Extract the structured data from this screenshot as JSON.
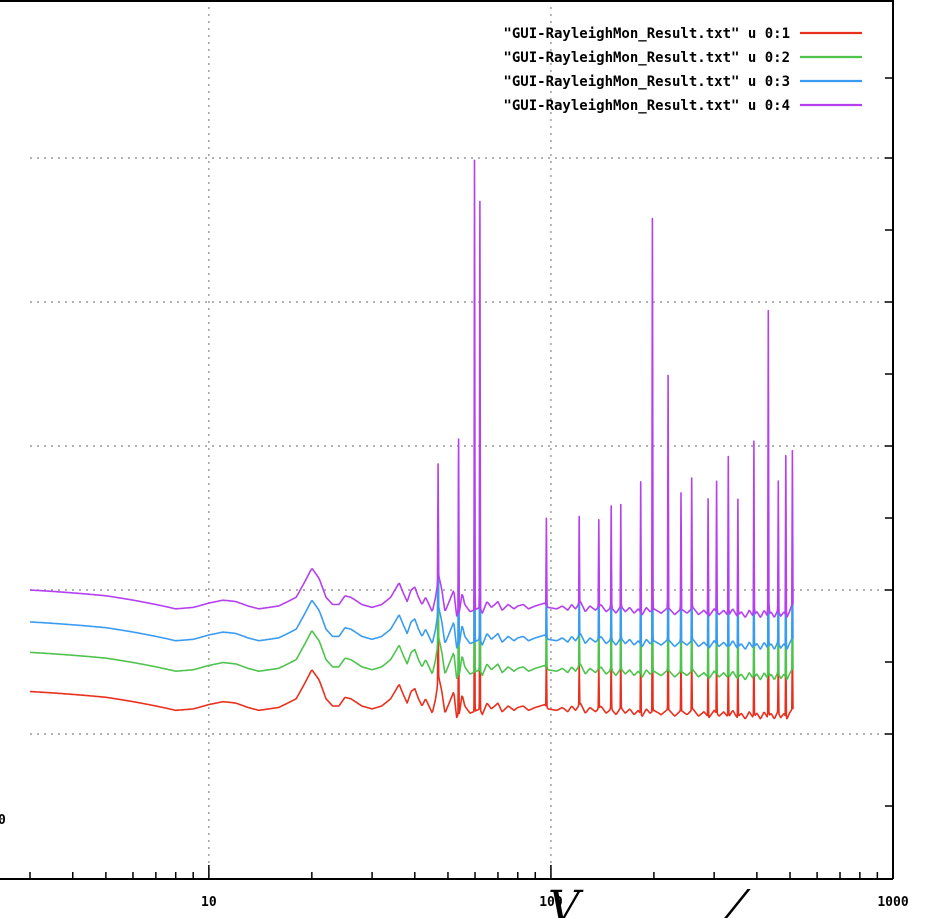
{
  "chart_data": {
    "type": "line",
    "xscale": "log",
    "xlim": [
      3,
      1000
    ],
    "x_ticks": [
      {
        "value": 10,
        "label": "10"
      },
      {
        "value": 100,
        "label": "100"
      },
      {
        "value": 1000,
        "label": "1000"
      }
    ],
    "left_edge_label": "0",
    "grid": true,
    "legend_position": "top-right",
    "series": [
      {
        "name": "\"GUI-RayleighMon_Result.txt\" u 0:1",
        "color": "#e8301e",
        "offset": 0
      },
      {
        "name": "\"GUI-RayleighMon_Result.txt\" u 0:2",
        "color": "#4ec44e",
        "offset": 1
      },
      {
        "name": "\"GUI-RayleighMon_Result.txt\" u 0:3",
        "color": "#3a9cf0",
        "offset": 2
      },
      {
        "name": "\"GUI-RayleighMon_Result.txt\" u 0:4",
        "color": "#b540f0",
        "offset": 3
      }
    ],
    "base_profile": [
      [
        3,
        0.1
      ],
      [
        4,
        0.08
      ],
      [
        5,
        0.06
      ],
      [
        6,
        0.03
      ],
      [
        7,
        0.0
      ],
      [
        8,
        -0.03
      ],
      [
        9,
        -0.02
      ],
      [
        10,
        0.01
      ],
      [
        11,
        0.03
      ],
      [
        12,
        0.02
      ],
      [
        13,
        -0.01
      ],
      [
        14,
        -0.03
      ],
      [
        15,
        -0.02
      ],
      [
        16,
        -0.01
      ],
      [
        18,
        0.05
      ],
      [
        19,
        0.15
      ],
      [
        20,
        0.25
      ],
      [
        21,
        0.18
      ],
      [
        22,
        0.05
      ],
      [
        23,
        0.0
      ],
      [
        24,
        0.0
      ],
      [
        25,
        0.06
      ],
      [
        26,
        0.05
      ],
      [
        28,
        0.0
      ],
      [
        30,
        -0.02
      ],
      [
        32,
        0.0
      ],
      [
        34,
        0.05
      ],
      [
        36,
        0.15
      ],
      [
        37,
        0.08
      ],
      [
        38,
        0.02
      ],
      [
        39,
        0.1
      ],
      [
        40,
        0.12
      ],
      [
        41,
        0.05
      ],
      [
        42,
        0.0
      ],
      [
        43,
        0.05
      ],
      [
        44,
        0.0
      ],
      [
        45,
        -0.05
      ],
      [
        46,
        0.05
      ],
      [
        47,
        0.2
      ],
      [
        48,
        0.1
      ],
      [
        49,
        -0.05
      ],
      [
        50,
        0.0
      ],
      [
        51,
        0.05
      ],
      [
        52,
        0.1
      ],
      [
        53,
        -0.08
      ],
      [
        54,
        -0.05
      ],
      [
        55,
        0.08
      ],
      [
        56,
        0.0
      ],
      [
        58,
        -0.05
      ],
      [
        62,
        -0.02
      ],
      [
        63,
        -0.06
      ],
      [
        65,
        0.02
      ],
      [
        67,
        -0.02
      ],
      [
        70,
        0.02
      ],
      [
        72,
        -0.04
      ],
      [
        75,
        0.0
      ],
      [
        78,
        -0.03
      ],
      [
        80,
        -0.01
      ],
      [
        83,
        0.0
      ],
      [
        86,
        -0.03
      ],
      [
        90,
        -0.01
      ],
      [
        93,
        0.0
      ],
      [
        96,
        0.01
      ],
      [
        98,
        -0.02
      ],
      [
        104,
        -0.03
      ],
      [
        108,
        -0.01
      ],
      [
        112,
        -0.04
      ],
      [
        115,
        0.0
      ],
      [
        118,
        -0.03
      ],
      [
        122,
        0.02
      ],
      [
        126,
        -0.05
      ],
      [
        130,
        -0.01
      ],
      [
        135,
        -0.04
      ],
      [
        140,
        0.0
      ],
      [
        145,
        -0.05
      ],
      [
        150,
        -0.02
      ],
      [
        155,
        -0.06
      ],
      [
        160,
        -0.01
      ],
      [
        165,
        -0.05
      ],
      [
        170,
        -0.02
      ],
      [
        175,
        -0.06
      ],
      [
        180,
        -0.03
      ],
      [
        185,
        -0.07
      ],
      [
        190,
        -0.02
      ],
      [
        195,
        -0.05
      ],
      [
        200,
        -0.03
      ],
      [
        210,
        -0.06
      ],
      [
        220,
        -0.02
      ],
      [
        230,
        -0.07
      ],
      [
        240,
        -0.03
      ],
      [
        250,
        -0.06
      ],
      [
        260,
        -0.02
      ],
      [
        270,
        -0.07
      ],
      [
        280,
        -0.04
      ],
      [
        290,
        -0.08
      ],
      [
        300,
        -0.03
      ],
      [
        310,
        -0.07
      ],
      [
        320,
        -0.04
      ],
      [
        330,
        -0.08
      ],
      [
        340,
        -0.03
      ],
      [
        350,
        -0.08
      ],
      [
        360,
        -0.05
      ],
      [
        370,
        -0.09
      ],
      [
        380,
        -0.04
      ],
      [
        390,
        -0.08
      ],
      [
        400,
        -0.05
      ],
      [
        410,
        -0.09
      ],
      [
        420,
        -0.04
      ],
      [
        430,
        -0.08
      ],
      [
        440,
        -0.05
      ],
      [
        450,
        -0.09
      ],
      [
        460,
        -0.04
      ],
      [
        470,
        -0.08
      ],
      [
        480,
        -0.05
      ],
      [
        490,
        -0.09
      ],
      [
        500,
        -0.04
      ]
    ],
    "peaks": [
      {
        "x": 46.8,
        "heights": [
          0.5,
          0.6,
          0.7,
          0.8
        ]
      },
      {
        "x": 53.7,
        "heights": [
          0.6,
          0.8,
          1.0,
          1.2
        ]
      },
      {
        "x": 59.8,
        "heights": [
          1.5,
          1.6,
          1.7,
          3.1
        ]
      },
      {
        "x": 62.0,
        "heights": [
          1.4,
          1.5,
          1.6,
          2.8
        ]
      },
      {
        "x": 97.0,
        "heights": [
          0.4,
          0.5,
          0.5,
          0.6
        ]
      },
      {
        "x": 121.0,
        "heights": [
          0.3,
          0.4,
          0.4,
          0.6
        ]
      },
      {
        "x": 138.0,
        "heights": [
          0.3,
          0.4,
          0.5,
          0.6
        ]
      },
      {
        "x": 150.0,
        "heights": [
          0.4,
          0.5,
          0.5,
          0.7
        ]
      },
      {
        "x": 160.0,
        "heights": [
          0.4,
          0.5,
          0.6,
          0.7
        ]
      },
      {
        "x": 183.0,
        "heights": [
          0.5,
          0.6,
          0.7,
          0.9
        ]
      },
      {
        "x": 198.0,
        "heights": [
          0.9,
          1.0,
          1.1,
          2.7
        ]
      },
      {
        "x": 220.0,
        "heights": [
          0.6,
          0.7,
          0.8,
          1.6
        ]
      },
      {
        "x": 240.0,
        "heights": [
          0.4,
          0.5,
          0.6,
          0.8
        ]
      },
      {
        "x": 258.0,
        "heights": [
          0.4,
          0.5,
          0.6,
          0.9
        ]
      },
      {
        "x": 288.0,
        "heights": [
          0.4,
          0.5,
          0.6,
          0.8
        ]
      },
      {
        "x": 305.0,
        "heights": [
          0.4,
          0.5,
          0.6,
          0.9
        ]
      },
      {
        "x": 330.0,
        "heights": [
          0.4,
          0.5,
          0.6,
          1.1
        ]
      },
      {
        "x": 352.0,
        "heights": [
          0.4,
          0.5,
          0.6,
          0.8
        ]
      },
      {
        "x": 392.0,
        "heights": [
          0.5,
          0.6,
          0.7,
          1.2
        ]
      },
      {
        "x": 432.0,
        "heights": [
          0.8,
          0.9,
          1.0,
          2.1
        ]
      },
      {
        "x": 462.0,
        "heights": [
          0.4,
          0.5,
          0.6,
          0.9
        ]
      },
      {
        "x": 486.0,
        "heights": [
          0.5,
          0.6,
          0.7,
          1.1
        ]
      },
      {
        "x": 508.0,
        "heights": [
          0.5,
          0.6,
          0.7,
          1.1
        ]
      }
    ]
  },
  "overlay": {
    "fragment_1": "V",
    "fragment_2": "⁄"
  }
}
